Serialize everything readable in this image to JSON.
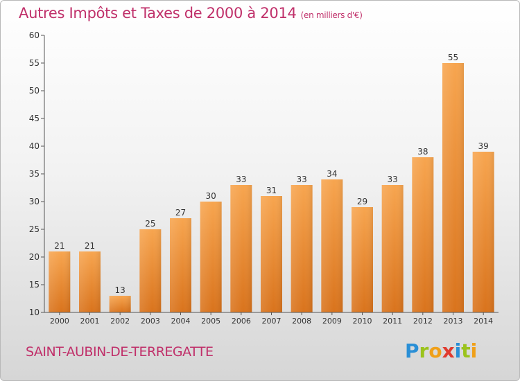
{
  "chart_data": {
    "type": "bar",
    "title": "Autres Impôts et Taxes de 2000 à 2014",
    "subtitle": "(en milliers d'€)",
    "categories": [
      "2000",
      "2001",
      "2002",
      "2003",
      "2004",
      "2005",
      "2006",
      "2007",
      "2008",
      "2009",
      "2010",
      "2011",
      "2012",
      "2013",
      "2014"
    ],
    "values": [
      21,
      21,
      13,
      25,
      27,
      30,
      33,
      31,
      33,
      34,
      29,
      33,
      38,
      55,
      39
    ],
    "ylim": [
      10,
      60
    ],
    "yticks": [
      10,
      15,
      20,
      25,
      30,
      35,
      40,
      45,
      50,
      55,
      60
    ],
    "grid": false,
    "colors": {
      "bar": "#f08a2a",
      "bar_light": "#f9b061",
      "bar_dark": "#d9731c",
      "text": "#333333",
      "title": "#c0306a"
    }
  },
  "footer": {
    "town": "SAINT-AUBIN-DE-TERREGATTE",
    "logo_letters": [
      {
        "ch": "P",
        "color": "#2a8fd6"
      },
      {
        "ch": "r",
        "color": "#9bc31c"
      },
      {
        "ch": "o",
        "color": "#f0a019"
      },
      {
        "ch": "x",
        "color": "#e03a2e"
      },
      {
        "ch": "i",
        "color": "#2a8fd6"
      },
      {
        "ch": "t",
        "color": "#9bc31c"
      },
      {
        "ch": "i",
        "color": "#f0a019"
      }
    ]
  }
}
